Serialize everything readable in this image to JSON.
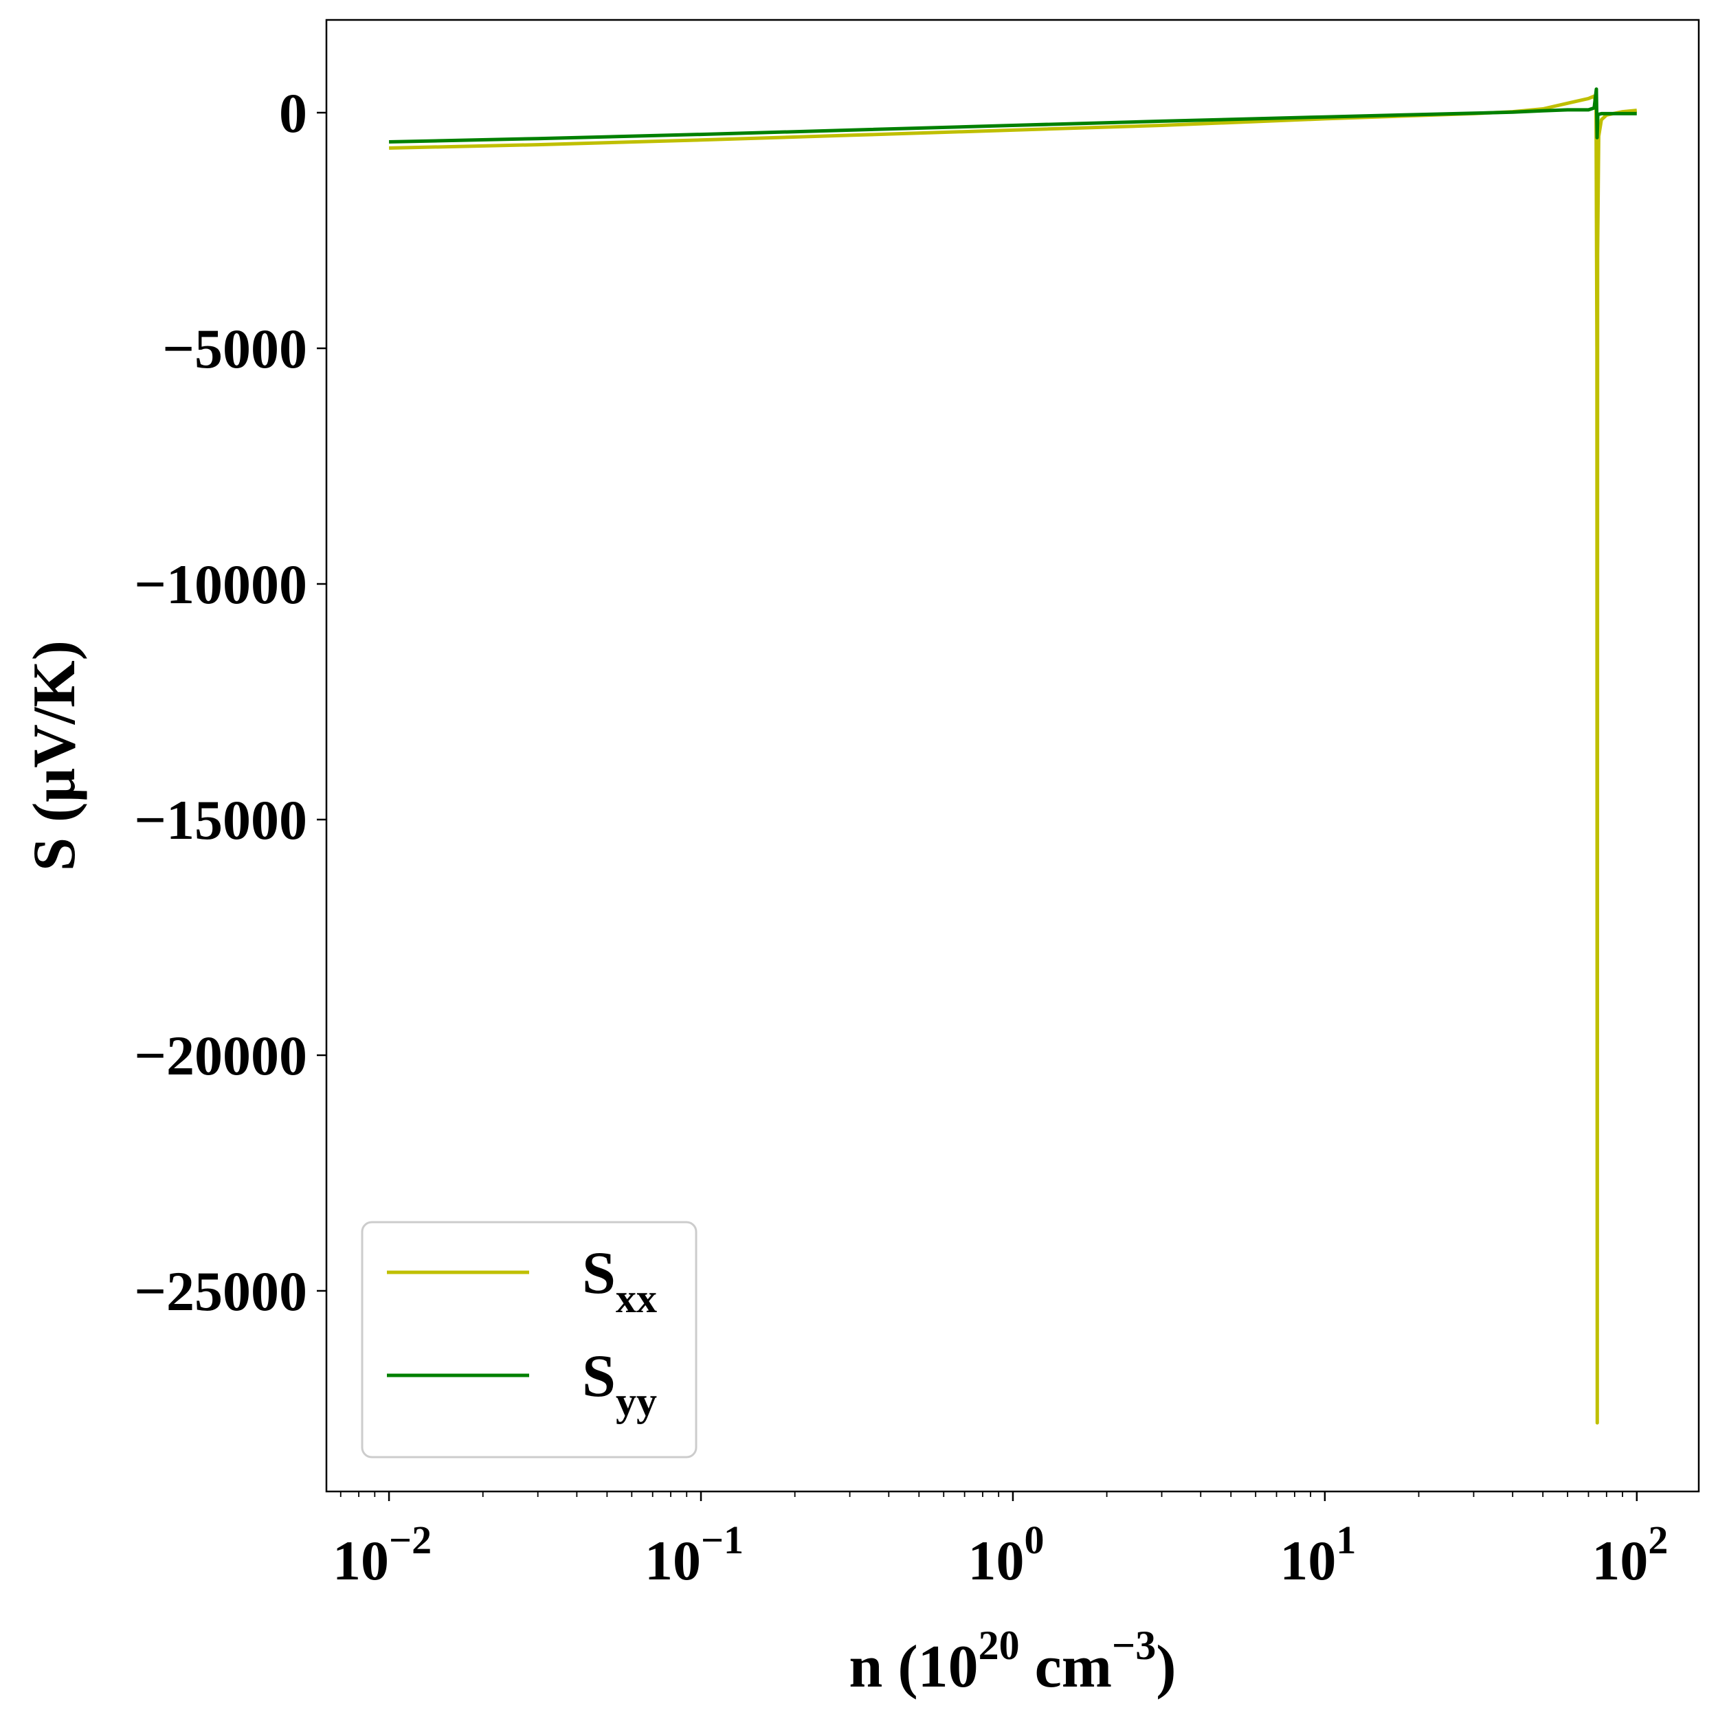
{
  "chart_data": {
    "type": "line",
    "xlabel": {
      "base": "n (10",
      "sup1": "20",
      "mid": " cm",
      "sup2": "−3",
      "end": ")"
    },
    "ylabel": "S (μV/K)",
    "xscale": "log",
    "xlim": [
      0.0063,
      158
    ],
    "ylim": [
      -29257,
      1968
    ],
    "grid": false,
    "x_ticks": [
      {
        "value": 0.01,
        "base": "10",
        "exp": "−2"
      },
      {
        "value": 0.1,
        "base": "10",
        "exp": "−1"
      },
      {
        "value": 1,
        "base": "10",
        "exp": "0"
      },
      {
        "value": 10,
        "base": "10",
        "exp": "1"
      },
      {
        "value": 100,
        "base": "10",
        "exp": "2"
      }
    ],
    "y_ticks": [
      {
        "value": 0,
        "label": "0"
      },
      {
        "value": -5000,
        "label": "−5000"
      },
      {
        "value": -10000,
        "label": "−10000"
      },
      {
        "value": -15000,
        "label": "−15000"
      },
      {
        "value": -20000,
        "label": "−20000"
      },
      {
        "value": -25000,
        "label": "−25000"
      }
    ],
    "legend": {
      "placement": "lower-left"
    },
    "series": [
      {
        "name": "S",
        "sub": "xx",
        "color": "#bfbf00",
        "x": [
          0.01,
          0.03,
          0.1,
          0.3,
          1,
          3,
          10,
          20,
          30,
          40,
          50,
          60,
          70,
          73,
          74,
          74.5,
          74.7,
          74.9,
          75.5,
          77,
          80,
          90,
          100
        ],
        "y": [
          -750,
          -680,
          -580,
          -480,
          -370,
          -270,
          -130,
          -60,
          -20,
          20,
          80,
          200,
          300,
          350,
          200,
          -5000,
          -27800,
          -3000,
          -500,
          -150,
          -50,
          20,
          50
        ]
      },
      {
        "name": "S",
        "sub": "yy",
        "color": "#008000",
        "x": [
          0.01,
          0.03,
          0.1,
          0.3,
          1,
          3,
          10,
          20,
          30,
          40,
          50,
          60,
          70,
          73,
          74.2,
          74.6,
          75,
          77,
          80,
          100
        ],
        "y": [
          -620,
          -550,
          -460,
          -370,
          -270,
          -180,
          -90,
          -40,
          -10,
          10,
          40,
          60,
          60,
          100,
          500,
          -530,
          -40,
          -20,
          -20,
          -20
        ]
      }
    ]
  }
}
